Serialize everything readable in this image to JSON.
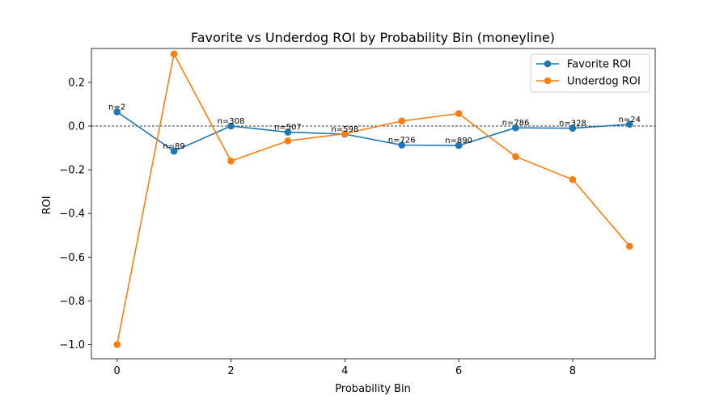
{
  "chart_data": {
    "type": "line",
    "title": "Favorite vs Underdog ROI by Probability Bin (moneyline)",
    "xlabel": "Probability Bin",
    "ylabel": "ROI",
    "xlim": [
      -0.45,
      9.45
    ],
    "ylim": [
      -1.065,
      0.355
    ],
    "xticks": [
      0,
      2,
      4,
      6,
      8
    ],
    "yticks": [
      -1.0,
      -0.8,
      -0.6,
      -0.4,
      -0.2,
      0.0,
      0.2
    ],
    "ytick_labels": [
      "−1.0",
      "−0.8",
      "−0.6",
      "−0.4",
      "−0.2",
      "0.0",
      "0.2"
    ],
    "reference_line": {
      "y": 0,
      "style": "dashed",
      "color": "#000000"
    },
    "grid": false,
    "legend_position": "top-right",
    "x": [
      0,
      1,
      2,
      3,
      4,
      5,
      6,
      7,
      8,
      9
    ],
    "series": [
      {
        "name": "Favorite ROI",
        "color": "#1f77b4",
        "values": [
          0.065,
          -0.115,
          0.0,
          -0.028,
          -0.037,
          -0.087,
          -0.089,
          -0.008,
          -0.01,
          0.008
        ]
      },
      {
        "name": "Underdog ROI",
        "color": "#ff7f0e",
        "values": [
          -1.0,
          0.33,
          -0.16,
          -0.068,
          -0.035,
          0.023,
          0.057,
          -0.14,
          -0.245,
          -0.55
        ]
      }
    ],
    "annotations": [
      "n=2",
      "n=89",
      "n=308",
      "n=507",
      "n=598",
      "n=726",
      "n=890",
      "n=786",
      "n=328",
      "n=24"
    ]
  }
}
